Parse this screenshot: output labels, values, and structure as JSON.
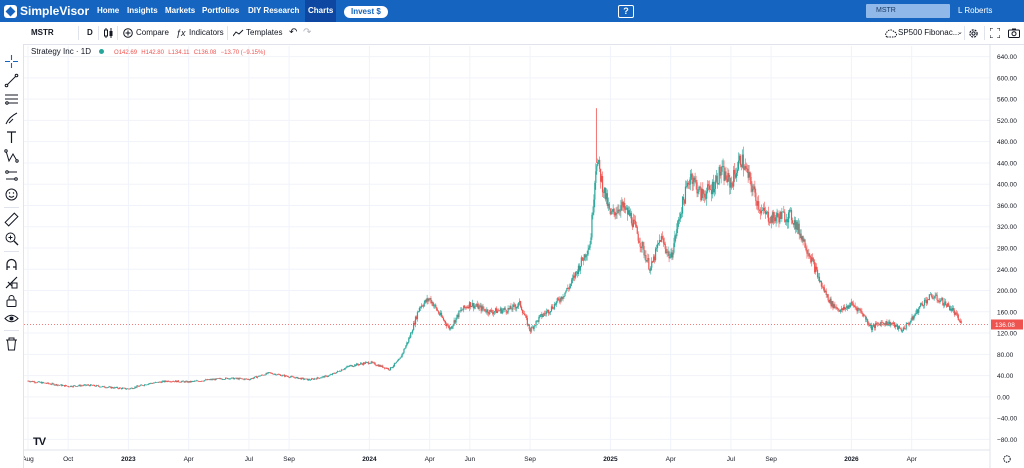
{
  "app": {
    "name": "SimpleVisor"
  },
  "nav": {
    "items": [
      "Home",
      "Insights",
      "Markets",
      "Portfolios",
      "DIY Research",
      "Charts"
    ],
    "active": "Charts",
    "invest_label": "Invest $",
    "search_value": "MSTR",
    "user": "L Roberts"
  },
  "toolbar": {
    "symbol": "MSTR",
    "interval": "D",
    "compare_label": "Compare",
    "indicators_label": "Indicators",
    "templates_label": "Templates",
    "layout_label": "SP500 Fibonac..."
  },
  "legend": {
    "symbol_line": "Strategy Inc · 1D",
    "open": "O142.69",
    "high": "H142.80",
    "low": "L134.11",
    "close": "C136.08",
    "change": "−13.70 (−9.15%)"
  },
  "colors": {
    "up": "#26a69a",
    "down": "#ef5350",
    "nav": "#1565c0"
  },
  "icons": [
    "crosshair-icon",
    "trendline-icon",
    "fib-icon",
    "brush-icon",
    "text-icon",
    "pattern-icon",
    "measure-icon",
    "emoji-icon",
    "ruler-icon",
    "zoom-icon",
    "magnet-icon",
    "lock-drawings-icon",
    "lock-icon",
    "eye-icon",
    "trash-icon"
  ],
  "chart_data": {
    "type": "candlestick",
    "symbol": "MSTR",
    "interval": "1D",
    "last_price": 136.08,
    "y_ticks": [
      "640.00",
      "600.00",
      "560.00",
      "520.00",
      "480.00",
      "440.00",
      "400.00",
      "360.00",
      "320.00",
      "280.00",
      "240.00",
      "200.00",
      "160.00",
      "120.00",
      "80.00",
      "40.00",
      "0.00",
      "−40.00",
      "−80.00"
    ],
    "y_tick_values": [
      640,
      600,
      560,
      520,
      480,
      440,
      400,
      360,
      320,
      280,
      240,
      200,
      160,
      120,
      80,
      40,
      0,
      -40,
      -80
    ],
    "ylim": [
      -100,
      660
    ],
    "x_tick_labels": [
      "Aug",
      "Oct",
      "2023",
      "Apr",
      "Jul",
      "Sep",
      "2024",
      "Apr",
      "Jun",
      "Sep",
      "2025",
      "Apr",
      "Jul",
      "Sep",
      "2026",
      "Apr"
    ],
    "x_tick_months": [
      0,
      2,
      5,
      8,
      11,
      13,
      17,
      20,
      22,
      25,
      29,
      32,
      35,
      37,
      41,
      44
    ],
    "xlim_months": [
      0,
      47.7
    ],
    "price_path": [
      [
        0,
        30
      ],
      [
        1,
        25
      ],
      [
        2,
        20
      ],
      [
        3,
        22
      ],
      [
        4,
        18
      ],
      [
        5,
        15
      ],
      [
        6,
        25
      ],
      [
        7,
        30
      ],
      [
        8,
        28
      ],
      [
        9,
        32
      ],
      [
        10,
        35
      ],
      [
        11,
        33
      ],
      [
        12,
        45
      ],
      [
        13,
        38
      ],
      [
        14,
        32
      ],
      [
        15,
        40
      ],
      [
        16,
        58
      ],
      [
        17,
        65
      ],
      [
        18,
        52
      ],
      [
        18.5,
        70
      ],
      [
        19,
        112
      ],
      [
        19.5,
        170
      ],
      [
        20,
        185
      ],
      [
        20.5,
        155
      ],
      [
        21,
        128
      ],
      [
        21.5,
        160
      ],
      [
        22,
        175
      ],
      [
        23,
        160
      ],
      [
        24,
        165
      ],
      [
        24.5,
        175
      ],
      [
        25,
        125
      ],
      [
        25.5,
        150
      ],
      [
        26,
        165
      ],
      [
        26.5,
        185
      ],
      [
        27,
        210
      ],
      [
        27.5,
        250
      ],
      [
        28,
        290
      ],
      [
        28.3,
        450
      ],
      [
        28.6,
        400
      ],
      [
        29,
        340
      ],
      [
        29.5,
        360
      ],
      [
        30,
        340
      ],
      [
        31,
        240
      ],
      [
        31.5,
        300
      ],
      [
        32,
        260
      ],
      [
        32.5,
        350
      ],
      [
        33,
        420
      ],
      [
        33.5,
        380
      ],
      [
        34,
        390
      ],
      [
        34.5,
        425
      ],
      [
        35,
        400
      ],
      [
        35.5,
        450
      ],
      [
        36,
        400
      ],
      [
        36.5,
        350
      ],
      [
        37,
        335
      ],
      [
        37.5,
        340
      ],
      [
        38,
        340
      ],
      [
        38.5,
        305
      ],
      [
        39,
        260
      ],
      [
        39.5,
        210
      ],
      [
        40,
        175
      ],
      [
        40.5,
        162
      ],
      [
        41,
        175
      ],
      [
        41.5,
        160
      ],
      [
        42,
        130
      ],
      [
        42.5,
        140
      ],
      [
        43,
        138
      ],
      [
        43.5,
        125
      ],
      [
        44,
        145
      ],
      [
        44.5,
        175
      ],
      [
        45,
        190
      ],
      [
        45.5,
        180
      ],
      [
        46,
        165
      ],
      [
        46.5,
        136
      ]
    ]
  }
}
